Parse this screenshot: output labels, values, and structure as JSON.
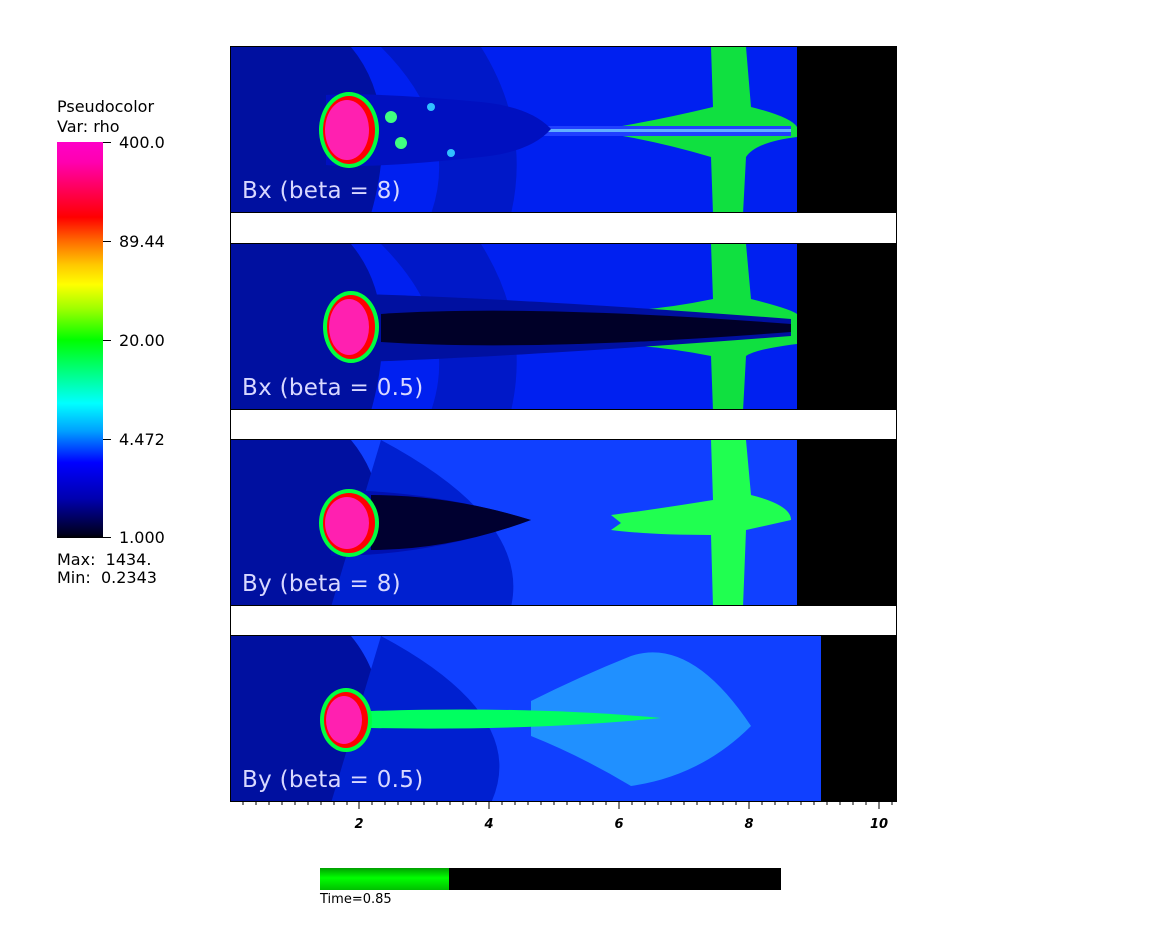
{
  "legend": {
    "title": "Pseudocolor",
    "var": "Var: rho",
    "ticks": [
      "400.0",
      "89.44",
      "20.00",
      "4.472",
      "1.000"
    ],
    "max": "Max:  1434.",
    "min": "Min:  0.2343"
  },
  "panels": [
    {
      "label": "Bx (beta = 8)"
    },
    {
      "label": "Bx (beta = 0.5)"
    },
    {
      "label": "By (beta = 8)"
    },
    {
      "label": "By (beta = 0.5)"
    }
  ],
  "axis": {
    "ticks": [
      "2",
      "4",
      "6",
      "8",
      "10"
    ]
  },
  "time": {
    "label": "Time=0.85",
    "progress": 0.28
  },
  "colors": {
    "background_blue": "#0028ff",
    "shock": "#00ff30",
    "core": "#ff1aa0"
  }
}
